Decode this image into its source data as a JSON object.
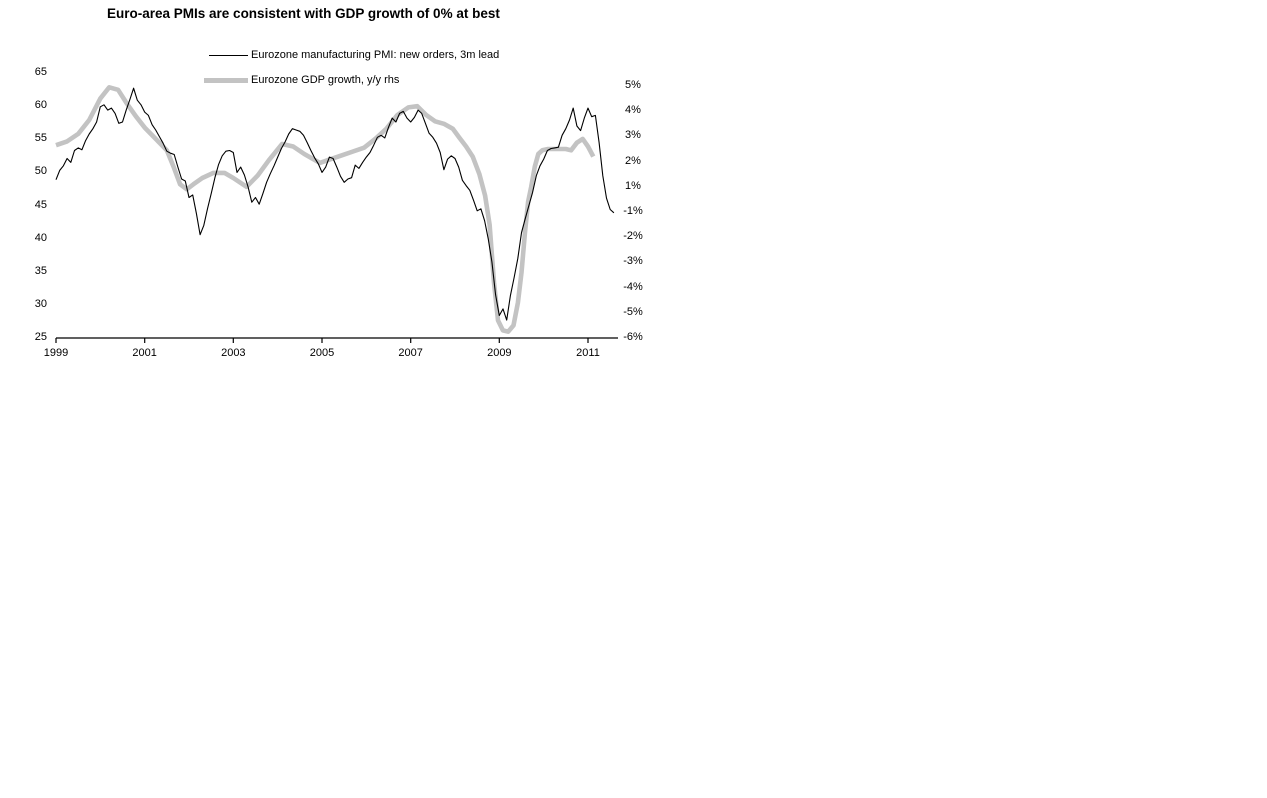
{
  "title": "Euro-area PMIs are consistent with GDP growth of 0% at best",
  "colors": {
    "pmi_line": "#000000",
    "gdp_line": "#c3c3c3",
    "background": "#ffffff",
    "text": "#000000"
  },
  "chart_data": {
    "type": "line",
    "title": "Euro-area PMIs are consistent with GDP growth of 0% at best",
    "legend_position": "top-center",
    "grid": false,
    "left_axis": {
      "range": [
        25,
        65
      ],
      "tick_labels": [
        "65",
        "60",
        "55",
        "50",
        "45",
        "40",
        "35",
        "30",
        "25"
      ]
    },
    "right_axis": {
      "tick_labels": [
        "5%",
        "4%",
        "3%",
        "2%",
        "1%",
        "-1%",
        "-2%",
        "-3%",
        "-4%",
        "-5%",
        "-6%"
      ],
      "note": "eleven evenly spaced ticks, 0% omitted between 1% and -1%"
    },
    "x_axis": {
      "range": [
        1999,
        2011.7
      ],
      "tick_labels": [
        "1999",
        "2001",
        "2003",
        "2005",
        "2007",
        "2009",
        "2011"
      ],
      "tick_values": [
        1999,
        2001,
        2003,
        2005,
        2007,
        2009,
        2011
      ]
    },
    "series": [
      {
        "name": "Eurozone manufacturing PMI: new orders, 3m lead",
        "axis": "left",
        "style": "thin-black",
        "x_start": 1999.0,
        "x_step_months": 1,
        "values": [
          48.9,
          50.3,
          51.0,
          52.1,
          51.5,
          53.3,
          53.7,
          53.4,
          54.8,
          55.8,
          56.6,
          57.6,
          59.9,
          60.2,
          59.4,
          59.7,
          58.9,
          57.4,
          57.6,
          59.4,
          61.0,
          62.7,
          60.9,
          60.2,
          59.1,
          58.6,
          57.2,
          56.4,
          55.4,
          54.4,
          53.2,
          52.9,
          52.7,
          50.8,
          49.0,
          48.7,
          46.2,
          46.6,
          43.8,
          40.6,
          42.0,
          44.5,
          46.8,
          49.2,
          51.2,
          52.5,
          53.2,
          53.3,
          53.0,
          50.0,
          50.8,
          49.6,
          47.8,
          45.5,
          46.2,
          45.2,
          46.8,
          48.5,
          49.8,
          51.0,
          52.3,
          53.6,
          54.6,
          55.8,
          56.6,
          56.4,
          56.2,
          55.6,
          54.5,
          53.3,
          52.2,
          51.3,
          50.0,
          50.8,
          52.3,
          52.1,
          50.8,
          49.4,
          48.5,
          49.0,
          49.2,
          51.1,
          50.6,
          51.5,
          52.3,
          53.0,
          54.1,
          55.3,
          55.6,
          55.2,
          56.8,
          58.2,
          57.6,
          58.9,
          59.2,
          58.2,
          57.6,
          58.3,
          59.4,
          58.9,
          57.4,
          55.9,
          55.3,
          54.4,
          53.0,
          50.4,
          52.0,
          52.5,
          52.1,
          50.8,
          48.8,
          48.0,
          47.3,
          45.8,
          44.2,
          44.5,
          42.7,
          40.0,
          36.5,
          31.5,
          28.4,
          29.4,
          27.7,
          31.4,
          34.1,
          37.0,
          40.9,
          43.0,
          45.0,
          47.0,
          49.5,
          51.0,
          52.0,
          53.3,
          53.6,
          53.7,
          53.8,
          55.6,
          56.6,
          57.9,
          59.7,
          57.0,
          56.3,
          58.2,
          59.7,
          58.4,
          58.6,
          54.5,
          49.5,
          46.1,
          44.4,
          43.9
        ]
      },
      {
        "name": "Eurozone GDP growth, y/y rhs",
        "axis": "right",
        "style": "thick-gray",
        "points": [
          [
            1999.0,
            2.65
          ],
          [
            1999.25,
            2.8
          ],
          [
            1999.5,
            3.1
          ],
          [
            1999.75,
            3.65
          ],
          [
            2000.0,
            4.5
          ],
          [
            2000.2,
            4.95
          ],
          [
            2000.4,
            4.85
          ],
          [
            2000.6,
            4.3
          ],
          [
            2000.8,
            3.8
          ],
          [
            2001.0,
            3.35
          ],
          [
            2001.25,
            2.9
          ],
          [
            2001.5,
            2.45
          ],
          [
            2001.65,
            1.8
          ],
          [
            2001.8,
            1.1
          ],
          [
            2001.95,
            0.8
          ],
          [
            2002.1,
            1.1
          ],
          [
            2002.3,
            1.35
          ],
          [
            2002.55,
            1.55
          ],
          [
            2002.8,
            1.55
          ],
          [
            2003.0,
            1.35
          ],
          [
            2003.3,
            1.0
          ],
          [
            2003.55,
            1.45
          ],
          [
            2003.8,
            2.05
          ],
          [
            2004.1,
            2.7
          ],
          [
            2004.35,
            2.6
          ],
          [
            2004.6,
            2.3
          ],
          [
            2004.95,
            1.95
          ],
          [
            2005.2,
            2.1
          ],
          [
            2005.45,
            2.25
          ],
          [
            2005.7,
            2.4
          ],
          [
            2005.95,
            2.55
          ],
          [
            2006.2,
            2.9
          ],
          [
            2006.45,
            3.3
          ],
          [
            2006.7,
            3.85
          ],
          [
            2006.95,
            4.15
          ],
          [
            2007.15,
            4.2
          ],
          [
            2007.35,
            3.85
          ],
          [
            2007.55,
            3.6
          ],
          [
            2007.75,
            3.5
          ],
          [
            2007.95,
            3.3
          ],
          [
            2008.1,
            2.95
          ],
          [
            2008.25,
            2.6
          ],
          [
            2008.4,
            2.2
          ],
          [
            2008.55,
            1.5
          ],
          [
            2008.68,
            0.3
          ],
          [
            2008.78,
            -1.5
          ],
          [
            2008.88,
            -3.8
          ],
          [
            2008.97,
            -5.3
          ],
          [
            2009.08,
            -5.7
          ],
          [
            2009.2,
            -5.75
          ],
          [
            2009.32,
            -5.5
          ],
          [
            2009.42,
            -4.6
          ],
          [
            2009.5,
            -3.4
          ],
          [
            2009.58,
            -1.8
          ],
          [
            2009.65,
            -0.2
          ],
          [
            2009.72,
            1.0
          ],
          [
            2009.8,
            1.8
          ],
          [
            2009.88,
            2.3
          ],
          [
            2009.97,
            2.45
          ],
          [
            2010.1,
            2.5
          ],
          [
            2010.3,
            2.5
          ],
          [
            2010.5,
            2.5
          ],
          [
            2010.62,
            2.45
          ],
          [
            2010.75,
            2.75
          ],
          [
            2010.88,
            2.9
          ],
          [
            2011.0,
            2.6
          ],
          [
            2011.12,
            2.2
          ]
        ]
      }
    ]
  }
}
